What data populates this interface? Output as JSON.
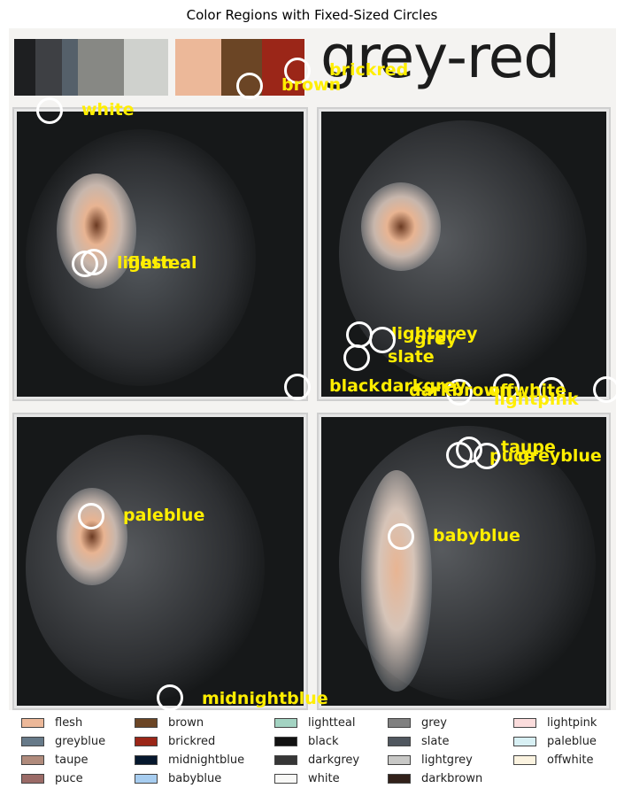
{
  "title": "Color Regions with Fixed-Sized Circles",
  "wordmark": "grey-red",
  "palette_strip": [
    {
      "name": "black",
      "color": "#1e1f21"
    },
    {
      "name": "darkgrey",
      "color": "#3e4044"
    },
    {
      "name": "slate",
      "color": "#55606a"
    },
    {
      "name": "grey",
      "color": "#878884"
    },
    {
      "name": "lightgrey",
      "color": "#cfd1cd"
    },
    {
      "name": "flesh",
      "color": "#ecb899"
    },
    {
      "name": "brown",
      "color": "#6b4525"
    },
    {
      "name": "brickred",
      "color": "#9b2618"
    }
  ],
  "annotations": [
    {
      "label": "brickred"
    },
    {
      "label": "brown"
    },
    {
      "label": "white"
    },
    {
      "label": "lightteal"
    },
    {
      "label": "flesh"
    },
    {
      "label": "lightgrey"
    },
    {
      "label": "grey"
    },
    {
      "label": "slate"
    },
    {
      "label": "black"
    },
    {
      "label": "darkgrey"
    },
    {
      "label": "darkbrown"
    },
    {
      "label": "offwhite"
    },
    {
      "label": "lightpink"
    },
    {
      "label": "taupe"
    },
    {
      "label": "puce"
    },
    {
      "label": "greyblue"
    },
    {
      "label": "paleblue"
    },
    {
      "label": "babyblue"
    },
    {
      "label": "midnightblue"
    }
  ],
  "legend": [
    {
      "label": "flesh",
      "color": "#ecb899"
    },
    {
      "label": "greyblue",
      "color": "#677a89"
    },
    {
      "label": "taupe",
      "color": "#b08b7c"
    },
    {
      "label": "puce",
      "color": "#9b6b67"
    },
    {
      "label": "brown",
      "color": "#6b4525"
    },
    {
      "label": "brickred",
      "color": "#9b2618"
    },
    {
      "label": "midnightblue",
      "color": "#06182e"
    },
    {
      "label": "babyblue",
      "color": "#a7cdf0"
    },
    {
      "label": "lightteal",
      "color": "#a3d3c2"
    },
    {
      "label": "black",
      "color": "#121212"
    },
    {
      "label": "darkgrey",
      "color": "#363636"
    },
    {
      "label": "white",
      "color": "#f8f8f6"
    },
    {
      "label": "grey",
      "color": "#808080"
    },
    {
      "label": "slate",
      "color": "#50575f"
    },
    {
      "label": "lightgrey",
      "color": "#c8c8c6"
    },
    {
      "label": "darkbrown",
      "color": "#32211a"
    },
    {
      "label": "lightpink",
      "color": "#fbdcdc"
    },
    {
      "label": "paleblue",
      "color": "#d8f0f4"
    },
    {
      "label": "offwhite",
      "color": "#fbf3e0"
    }
  ]
}
